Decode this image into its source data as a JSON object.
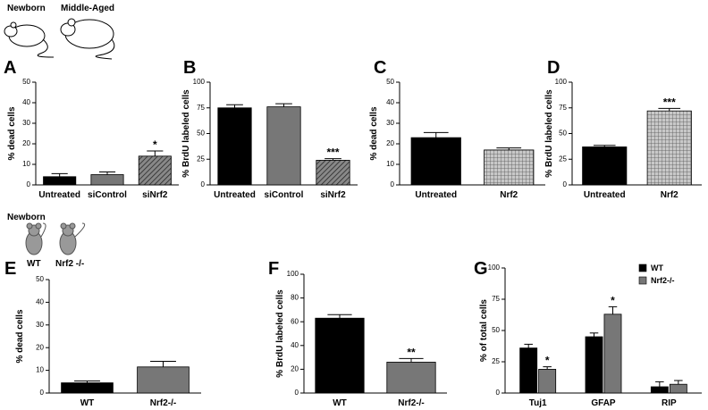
{
  "figure_labels": [
    "Newborn",
    "Middle-Aged",
    "Newborn",
    "WT",
    "Nrf2 -/-"
  ],
  "chart_data": [
    {
      "type": "bar",
      "panel": "A",
      "ylabel": "% dead cells",
      "categories": [
        "Untreated",
        "siControl",
        "siNrf2"
      ],
      "values": [
        4,
        5,
        14
      ],
      "errors": [
        1.5,
        1.3,
        2.5
      ],
      "annotations": [
        null,
        null,
        "*"
      ],
      "colors": [
        "#000000",
        "#777777",
        "#777777"
      ],
      "patterns": [
        "solid",
        "solid",
        "diagonal"
      ],
      "ylim": [
        0,
        50
      ],
      "yticks": [
        0,
        10,
        20,
        30,
        40,
        50
      ]
    },
    {
      "type": "bar",
      "panel": "B",
      "ylabel": "% BrdU labeled cells",
      "categories": [
        "Untreated",
        "siControl",
        "siNrf2"
      ],
      "values": [
        75,
        76,
        24
      ],
      "errors": [
        3,
        3,
        1.5
      ],
      "annotations": [
        null,
        null,
        "***"
      ],
      "colors": [
        "#000000",
        "#777777",
        "#777777"
      ],
      "patterns": [
        "solid",
        "solid",
        "diagonal"
      ],
      "ylim": [
        0,
        100
      ],
      "yticks": [
        0,
        25,
        50,
        75,
        100
      ]
    },
    {
      "type": "bar",
      "panel": "C",
      "ylabel": "% dead cells",
      "categories": [
        "Untreated",
        "Nrf2"
      ],
      "values": [
        23,
        17
      ],
      "errors": [
        2.5,
        1
      ],
      "annotations": [
        null,
        null
      ],
      "colors": [
        "#000000",
        "#bbbbbb"
      ],
      "patterns": [
        "solid",
        "grid"
      ],
      "ylim": [
        0,
        50
      ],
      "yticks": [
        0,
        10,
        20,
        30,
        40,
        50
      ]
    },
    {
      "type": "bar",
      "panel": "D",
      "ylabel": "% BrdU labeled cells",
      "categories": [
        "Untreated",
        "Nrf2"
      ],
      "values": [
        37,
        72
      ],
      "errors": [
        1.5,
        2.5
      ],
      "annotations": [
        null,
        "***"
      ],
      "colors": [
        "#000000",
        "#bbbbbb"
      ],
      "patterns": [
        "solid",
        "grid"
      ],
      "ylim": [
        0,
        100
      ],
      "yticks": [
        0,
        25,
        50,
        75,
        100
      ]
    },
    {
      "type": "bar",
      "panel": "E",
      "ylabel": "% dead cells",
      "categories": [
        "WT",
        "Nrf2-/-"
      ],
      "values": [
        4.5,
        11.5
      ],
      "errors": [
        0.8,
        2.5
      ],
      "annotations": [
        null,
        null
      ],
      "colors": [
        "#000000",
        "#777777"
      ],
      "patterns": [
        "solid",
        "solid"
      ],
      "ylim": [
        0,
        50
      ],
      "yticks": [
        0,
        10,
        20,
        30,
        40,
        50
      ]
    },
    {
      "type": "bar",
      "panel": "F",
      "ylabel": "% BrdU labeled cells",
      "categories": [
        "WT",
        "Nrf2-/-"
      ],
      "values": [
        63,
        26
      ],
      "errors": [
        3,
        3
      ],
      "annotations": [
        null,
        "**"
      ],
      "colors": [
        "#000000",
        "#777777"
      ],
      "patterns": [
        "solid",
        "solid"
      ],
      "ylim": [
        0,
        100
      ],
      "yticks": [
        0,
        20,
        40,
        60,
        80,
        100
      ]
    },
    {
      "type": "grouped-bar",
      "panel": "G",
      "ylabel": "% of total cells",
      "categories": [
        "Tuj1",
        "GFAP",
        "RIP"
      ],
      "series": [
        {
          "name": "WT",
          "color": "#000000",
          "values": [
            36,
            45,
            5
          ],
          "errors": [
            3,
            3,
            4
          ],
          "annotations": [
            null,
            null,
            null
          ]
        },
        {
          "name": "Nrf2-/-",
          "color": "#777777",
          "values": [
            19,
            63,
            7
          ],
          "errors": [
            2,
            6,
            3
          ],
          "annotations": [
            "*",
            "*",
            null
          ]
        }
      ],
      "ylim": [
        0,
        100
      ],
      "yticks": [
        0,
        25,
        50,
        75,
        100
      ],
      "legend": "upper-right"
    }
  ]
}
